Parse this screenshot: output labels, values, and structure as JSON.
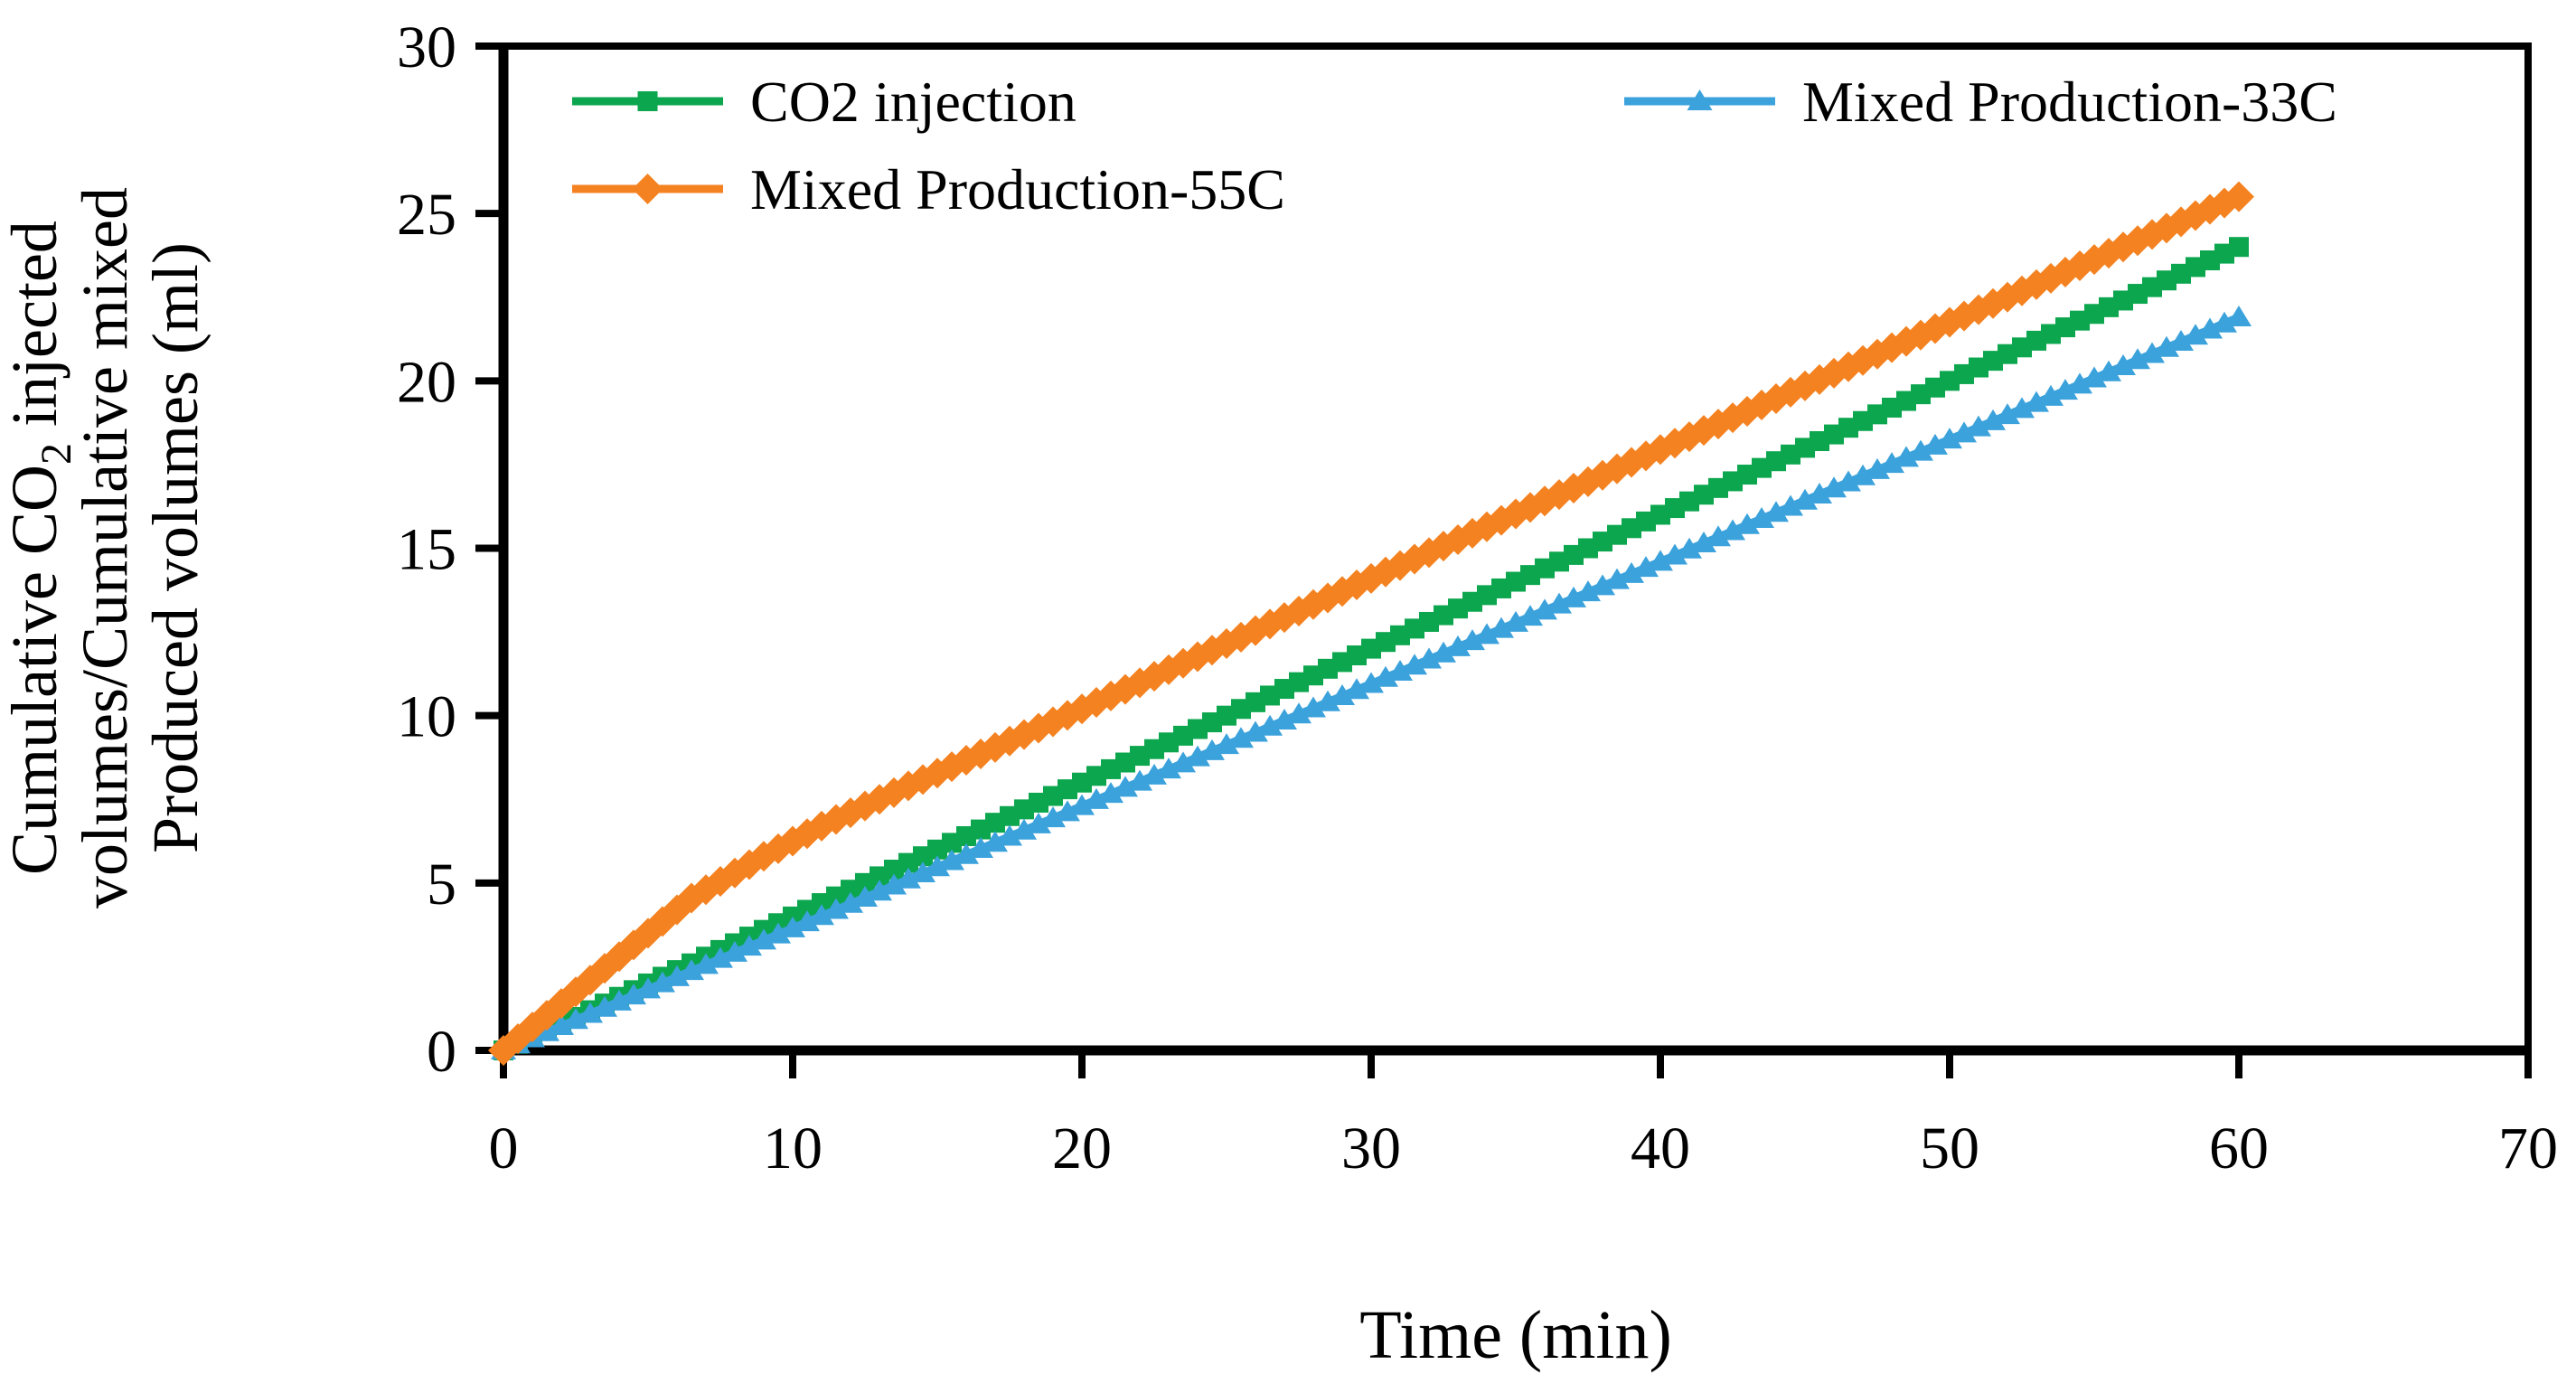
{
  "figure": {
    "background": "#ffffff",
    "axis_color": "#000000"
  },
  "chart_data": {
    "type": "line",
    "title": "",
    "xlabel": "Time (min)",
    "ylabel": {
      "full": "Cumulative CO2 injected volumes/Cumulative mixed Produced volumes (ml)",
      "line1_pre": "Cumulative CO",
      "line1_sub": "2",
      "line1_post": " injected",
      "line2": "volumes/Cumulative mixed",
      "line3": "Produced volumes (ml)"
    },
    "xlim": [
      0,
      70
    ],
    "ylim": [
      0,
      30
    ],
    "xticks": [
      0,
      10,
      20,
      30,
      40,
      50,
      60,
      70
    ],
    "yticks": [
      0,
      5,
      10,
      15,
      20,
      25,
      30
    ],
    "grid": false,
    "legend_position": "inside-top, two columns, two rows",
    "marker_interval_min": 0.5,
    "series": [
      {
        "name": "CO2 injection",
        "color": "#0ca64e",
        "marker": "square",
        "points": [
          [
            0,
            0
          ],
          [
            60,
            24
          ]
        ]
      },
      {
        "name": "Mixed Production-33C",
        "color": "#3ba2dc",
        "marker": "triangle",
        "points": [
          [
            0,
            0
          ],
          [
            60,
            21.9
          ]
        ]
      },
      {
        "name": "Mixed Production-55C",
        "color": "#f58220",
        "marker": "diamond",
        "points": [
          [
            0,
            0
          ],
          [
            1,
            0.7
          ],
          [
            2,
            1.4
          ],
          [
            3,
            2.1
          ],
          [
            4,
            2.8
          ],
          [
            5,
            3.5
          ],
          [
            6,
            4.2
          ],
          [
            6.5,
            4.55
          ],
          [
            7.5,
            5.05
          ],
          [
            9,
            5.8
          ],
          [
            11,
            6.7
          ],
          [
            14,
            7.9
          ],
          [
            20,
            10.2
          ],
          [
            30,
            14.1
          ],
          [
            40,
            17.95
          ],
          [
            50,
            21.75
          ],
          [
            60,
            25.5
          ]
        ]
      }
    ],
    "legend_order": [
      "CO2 injection",
      "Mixed Production-33C",
      "Mixed Production-55C"
    ]
  }
}
